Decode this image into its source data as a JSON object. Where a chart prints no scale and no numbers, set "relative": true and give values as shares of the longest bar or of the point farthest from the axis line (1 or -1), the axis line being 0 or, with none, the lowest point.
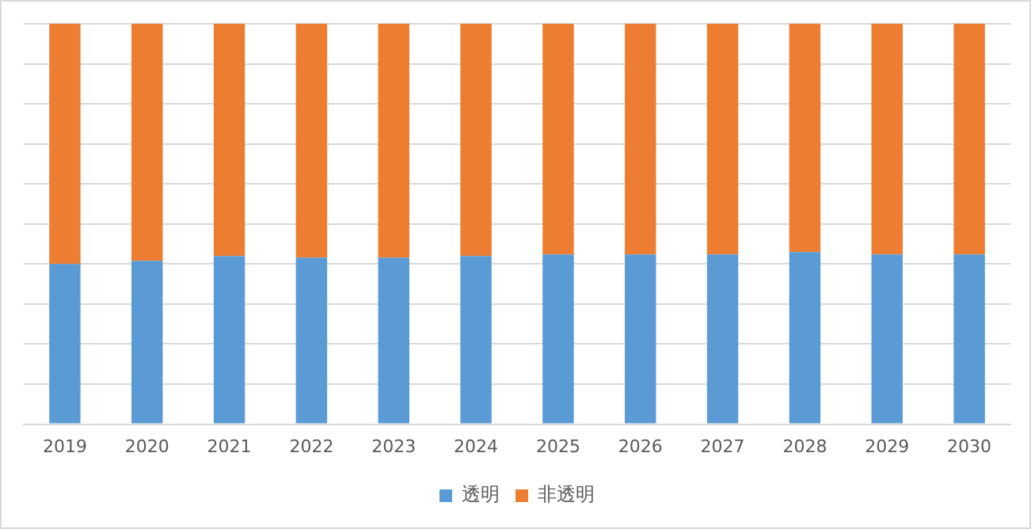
{
  "chart_data": {
    "type": "bar",
    "stacked": true,
    "relative": true,
    "grid": "y",
    "legend": "bottom",
    "categories": [
      "2019",
      "2020",
      "2021",
      "2022",
      "2023",
      "2024",
      "2025",
      "2026",
      "2027",
      "2028",
      "2029",
      "2030"
    ],
    "series": [
      {
        "name": "透明",
        "color": "#5b9bd5",
        "values": [
          0.4,
          0.408,
          0.42,
          0.416,
          0.416,
          0.42,
          0.424,
          0.424,
          0.424,
          0.43,
          0.424,
          0.424
        ]
      },
      {
        "name": "非透明",
        "color": "#ed7d31",
        "values": [
          0.6,
          0.592,
          0.58,
          0.584,
          0.584,
          0.58,
          0.576,
          0.576,
          0.576,
          0.57,
          0.576,
          0.576
        ]
      }
    ]
  }
}
